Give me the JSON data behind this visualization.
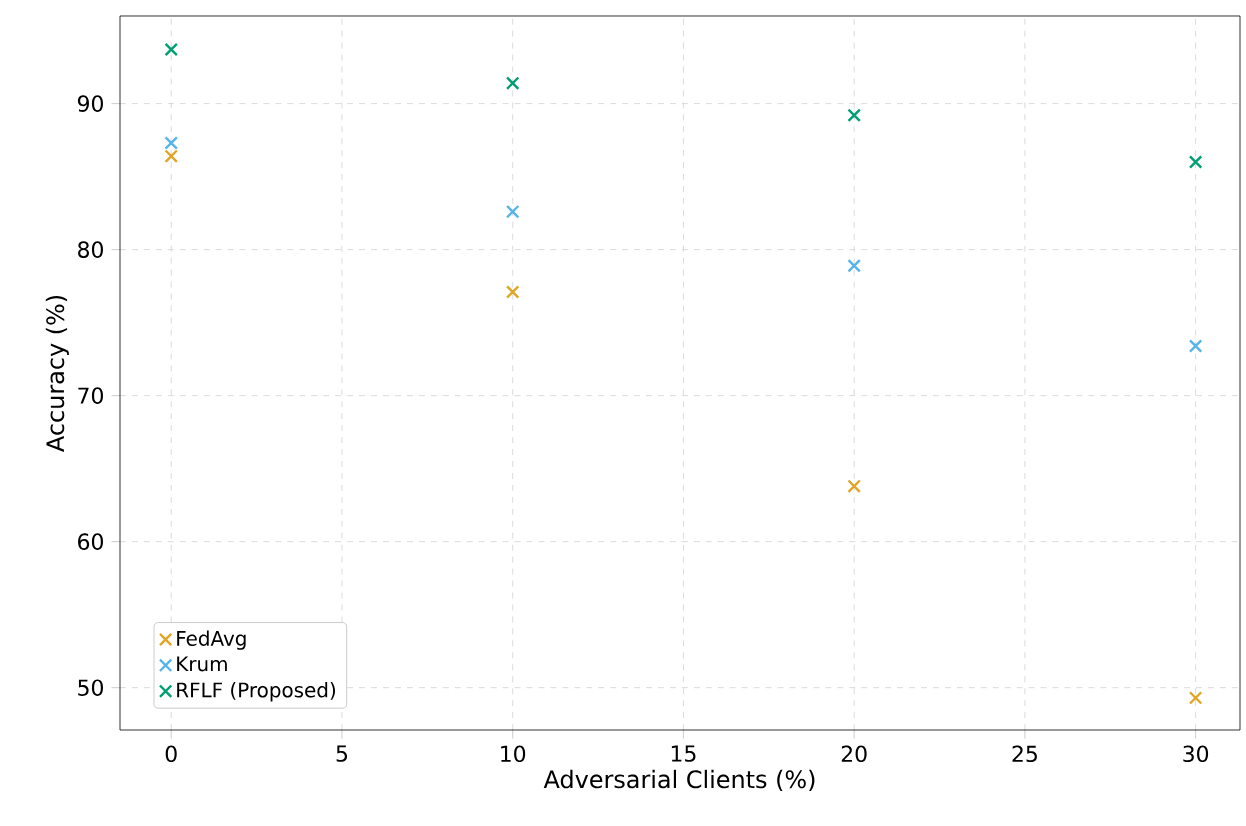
{
  "chart_data": {
    "type": "scatter",
    "xlabel": "Adversarial Clients (%)",
    "ylabel": "Accuracy (%)",
    "x": [
      0,
      10,
      20,
      30
    ],
    "series": [
      {
        "name": "FedAvg",
        "color": "#e0a526",
        "values": [
          86.4,
          77.1,
          63.8,
          49.3
        ]
      },
      {
        "name": "Krum",
        "color": "#56b4e9",
        "values": [
          87.3,
          82.6,
          78.9,
          73.4
        ]
      },
      {
        "name": "RFLF (Proposed)",
        "color": "#009e73",
        "values": [
          93.7,
          91.4,
          89.2,
          86.0
        ]
      }
    ],
    "xlim": [
      -1.5,
      31.3
    ],
    "ylim": [
      47.1,
      96
    ],
    "xticks": [
      0,
      5,
      10,
      15,
      20,
      25,
      30
    ],
    "yticks": [
      50,
      60,
      70,
      80,
      90
    ],
    "grid": true,
    "legend": "bottom left",
    "marker": "cross"
  }
}
